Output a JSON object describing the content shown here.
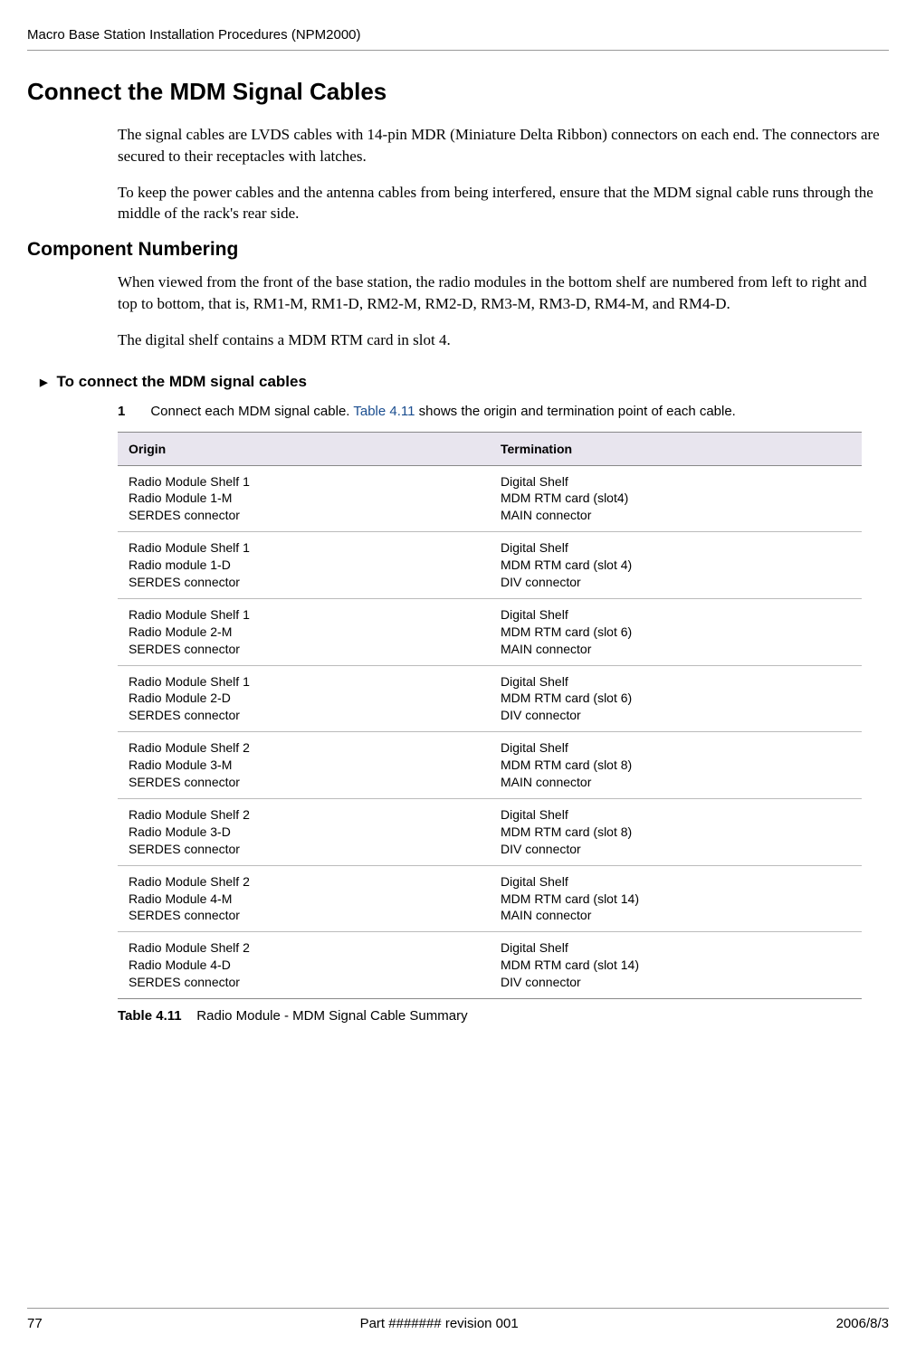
{
  "header": {
    "doc_title": "Macro Base Station Installation Procedures (NPM2000)"
  },
  "section": {
    "title": "Connect the MDM Signal Cables",
    "para1": "The signal cables are LVDS cables with 14-pin MDR (Miniature Delta Ribbon) connectors on each end. The connectors are secured to their receptacles with latches.",
    "para2": "To keep the power cables and the antenna cables from being interfered, ensure that the MDM signal cable runs through the middle of the rack's rear side."
  },
  "subsection": {
    "title": "Component Numbering",
    "para1": "When viewed from the front of the base station, the radio modules in the bottom shelf are numbered from left to right and top to bottom, that is, RM1-M, RM1-D, RM2-M, RM2-D, RM3-M, RM3-D, RM4-M, and RM4-D.",
    "para2": "The digital shelf contains a MDM RTM card in slot 4."
  },
  "procedure": {
    "heading": "To connect the MDM signal cables",
    "step_num": "1",
    "step_text_pre": "Connect each MDM signal cable. ",
    "step_link": "Table 4.11",
    "step_text_post": " shows the origin and termination point of each cable."
  },
  "table": {
    "headers": {
      "origin": "Origin",
      "termination": "Termination"
    },
    "rows": [
      {
        "origin_l1": "Radio Module Shelf 1",
        "origin_l2": "Radio Module 1-M",
        "origin_l3": "SERDES connector",
        "term_l1": "Digital Shelf",
        "term_l2": "MDM RTM card (slot4)",
        "term_l3": "MAIN connector"
      },
      {
        "origin_l1": "Radio Module Shelf 1",
        "origin_l2": "Radio module 1-D",
        "origin_l3": "SERDES connector",
        "term_l1": "Digital Shelf",
        "term_l2": "MDM RTM card (slot 4)",
        "term_l3": "DIV connector"
      },
      {
        "origin_l1": "Radio Module Shelf 1",
        "origin_l2": "Radio Module 2-M",
        "origin_l3": "SERDES connector",
        "term_l1": "Digital Shelf",
        "term_l2": "MDM RTM card (slot 6)",
        "term_l3": "MAIN connector"
      },
      {
        "origin_l1": "Radio Module Shelf 1",
        "origin_l2": "Radio Module 2-D",
        "origin_l3": "SERDES connector",
        "term_l1": "Digital Shelf",
        "term_l2": "MDM RTM card (slot 6)",
        "term_l3": "DIV connector"
      },
      {
        "origin_l1": "Radio Module Shelf 2",
        "origin_l2": "Radio Module 3-M",
        "origin_l3": "SERDES connector",
        "term_l1": "Digital Shelf",
        "term_l2": "MDM RTM card (slot 8)",
        "term_l3": "MAIN connector"
      },
      {
        "origin_l1": "Radio Module Shelf 2",
        "origin_l2": "Radio Module 3-D",
        "origin_l3": "SERDES connector",
        "term_l1": "Digital Shelf",
        "term_l2": "MDM RTM card (slot 8)",
        "term_l3": "DIV connector"
      },
      {
        "origin_l1": "Radio Module Shelf 2",
        "origin_l2": "Radio Module 4-M",
        "origin_l3": "SERDES connector",
        "term_l1": "Digital Shelf",
        "term_l2": "MDM RTM card (slot 14)",
        "term_l3": "MAIN connector"
      },
      {
        "origin_l1": "Radio Module Shelf 2",
        "origin_l2": "Radio Module 4-D",
        "origin_l3": "SERDES connector",
        "term_l1": "Digital Shelf",
        "term_l2": "MDM RTM card (slot 14)",
        "term_l3": "DIV connector"
      }
    ],
    "caption_label": "Table 4.11",
    "caption_text": "Radio Module - MDM Signal Cable Summary"
  },
  "footer": {
    "page": "77",
    "center": "Part ####### revision 001",
    "date": "2006/8/3"
  }
}
